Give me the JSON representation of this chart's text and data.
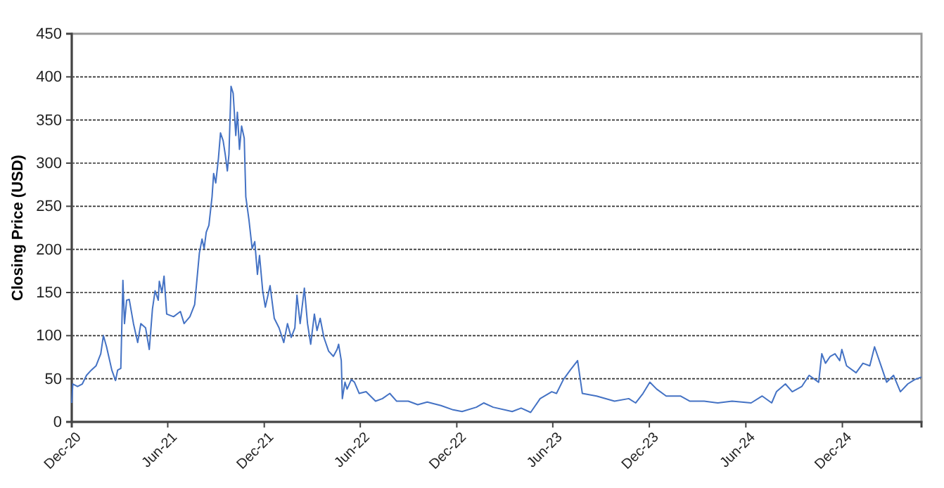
{
  "chart_data": {
    "type": "line",
    "ylabel": "Closing Price (USD)",
    "xlim": [
      "2020-12-01",
      "2025-04-30"
    ],
    "ylim": [
      0,
      450
    ],
    "yticks": [
      0,
      50,
      100,
      150,
      200,
      250,
      300,
      350,
      400,
      450
    ],
    "xticks": [
      {
        "value": "2020-12-01",
        "label": "Dec-20"
      },
      {
        "value": "2021-06-01",
        "label": "Jun-21"
      },
      {
        "value": "2021-12-01",
        "label": "Dec-21"
      },
      {
        "value": "2022-06-01",
        "label": "Jun-22"
      },
      {
        "value": "2022-12-01",
        "label": "Dec-22"
      },
      {
        "value": "2023-06-01",
        "label": "Jun-23"
      },
      {
        "value": "2023-12-01",
        "label": "Dec-23"
      },
      {
        "value": "2024-06-01",
        "label": "Jun-24"
      },
      {
        "value": "2024-12-01",
        "label": "Dec-24"
      }
    ],
    "grid": "y",
    "marker": "none",
    "line_style": "solid",
    "series": [
      {
        "color": "#4472c4",
        "x": [
          "2020-12-01",
          "2020-12-03",
          "2020-12-12",
          "2020-12-21",
          "2020-12-29",
          "2021-01-07",
          "2021-01-16",
          "2021-01-25",
          "2021-01-30",
          "2021-02-05",
          "2021-02-15",
          "2021-02-22",
          "2021-02-26",
          "2021-03-04",
          "2021-03-08",
          "2021-03-11",
          "2021-03-15",
          "2021-03-20",
          "2021-03-28",
          "2021-04-05",
          "2021-04-11",
          "2021-04-20",
          "2021-04-27",
          "2021-05-03",
          "2021-05-08",
          "2021-05-14",
          "2021-05-16",
          "2021-05-21",
          "2021-05-25",
          "2021-05-30",
          "2021-06-12",
          "2021-06-25",
          "2021-07-02",
          "2021-07-13",
          "2021-07-22",
          "2021-07-31",
          "2021-08-05",
          "2021-08-09",
          "2021-08-13",
          "2021-08-18",
          "2021-08-24",
          "2021-08-27",
          "2021-08-31",
          "2021-09-05",
          "2021-09-09",
          "2021-09-14",
          "2021-09-18",
          "2021-09-22",
          "2021-09-25",
          "2021-09-29",
          "2021-10-03",
          "2021-10-08",
          "2021-10-11",
          "2021-10-15",
          "2021-10-19",
          "2021-10-24",
          "2021-10-27",
          "2021-11-02",
          "2021-11-08",
          "2021-11-13",
          "2021-11-18",
          "2021-11-22",
          "2021-11-28",
          "2021-12-03",
          "2021-12-12",
          "2021-12-20",
          "2021-12-29",
          "2022-01-07",
          "2022-01-14",
          "2022-01-21",
          "2022-01-28",
          "2022-02-01",
          "2022-02-07",
          "2022-02-15",
          "2022-02-21",
          "2022-02-27",
          "2022-03-06",
          "2022-03-11",
          "2022-03-17",
          "2022-03-24",
          "2022-04-02",
          "2022-04-11",
          "2022-04-18",
          "2022-04-21",
          "2022-04-26",
          "2022-04-28",
          "2022-05-03",
          "2022-05-07",
          "2022-05-15",
          "2022-05-21",
          "2022-05-30",
          "2022-06-12",
          "2022-06-30",
          "2022-07-13",
          "2022-07-27",
          "2022-08-09",
          "2022-08-31",
          "2022-09-18",
          "2022-10-06",
          "2022-11-01",
          "2022-11-24",
          "2022-12-11",
          "2023-01-07",
          "2023-01-21",
          "2023-02-08",
          "2023-03-16",
          "2023-04-02",
          "2023-04-20",
          "2023-05-08",
          "2023-05-30",
          "2023-06-08",
          "2023-06-21",
          "2023-07-04",
          "2023-07-18",
          "2023-07-27",
          "2023-08-23",
          "2023-09-26",
          "2023-10-23",
          "2023-11-05",
          "2023-11-19",
          "2023-12-02",
          "2023-12-15",
          "2024-01-02",
          "2024-01-29",
          "2024-02-16",
          "2024-03-14",
          "2024-04-09",
          "2024-05-06",
          "2024-06-11",
          "2024-07-02",
          "2024-07-20",
          "2024-07-29",
          "2024-08-15",
          "2024-08-28",
          "2024-09-15",
          "2024-09-29",
          "2024-10-17",
          "2024-10-23",
          "2024-10-30",
          "2024-11-08",
          "2024-11-17",
          "2024-11-26",
          "2024-11-30",
          "2024-12-09",
          "2024-12-27",
          "2025-01-09",
          "2025-01-22",
          "2025-01-31",
          "2025-02-09",
          "2025-02-23",
          "2025-03-08",
          "2025-03-21",
          "2025-04-04",
          "2025-04-17",
          "2025-04-30"
        ],
        "values": [
          22,
          44,
          41,
          44,
          54,
          60,
          65,
          79,
          100,
          87,
          60,
          48,
          60,
          62,
          164,
          114,
          141,
          142,
          114,
          92,
          114,
          109,
          84,
          131,
          152,
          141,
          163,
          150,
          169,
          125,
          122,
          128,
          114,
          122,
          136,
          196,
          212,
          201,
          220,
          228,
          261,
          288,
          277,
          305,
          335,
          326,
          310,
          291,
          310,
          389,
          381,
          332,
          359,
          316,
          343,
          329,
          261,
          234,
          201,
          209,
          171,
          193,
          152,
          133,
          158,
          120,
          109,
          92,
          114,
          98,
          109,
          147,
          114,
          155,
          114,
          90,
          125,
          106,
          120,
          98,
          82,
          76,
          84,
          90,
          71,
          27,
          46,
          38,
          49,
          46,
          33,
          35,
          24,
          27,
          33,
          24,
          24,
          20,
          23,
          19,
          14,
          12,
          17,
          22,
          17,
          12,
          16,
          11,
          27,
          35,
          33,
          49,
          60,
          71,
          33,
          30,
          24,
          27,
          22,
          33,
          46,
          38,
          30,
          30,
          24,
          24,
          22,
          24,
          22,
          30,
          22,
          35,
          44,
          35,
          41,
          54,
          46,
          79,
          68,
          76,
          79,
          71,
          84,
          65,
          57,
          68,
          65,
          87,
          71,
          46,
          54,
          35,
          44,
          49,
          52
        ]
      }
    ]
  }
}
